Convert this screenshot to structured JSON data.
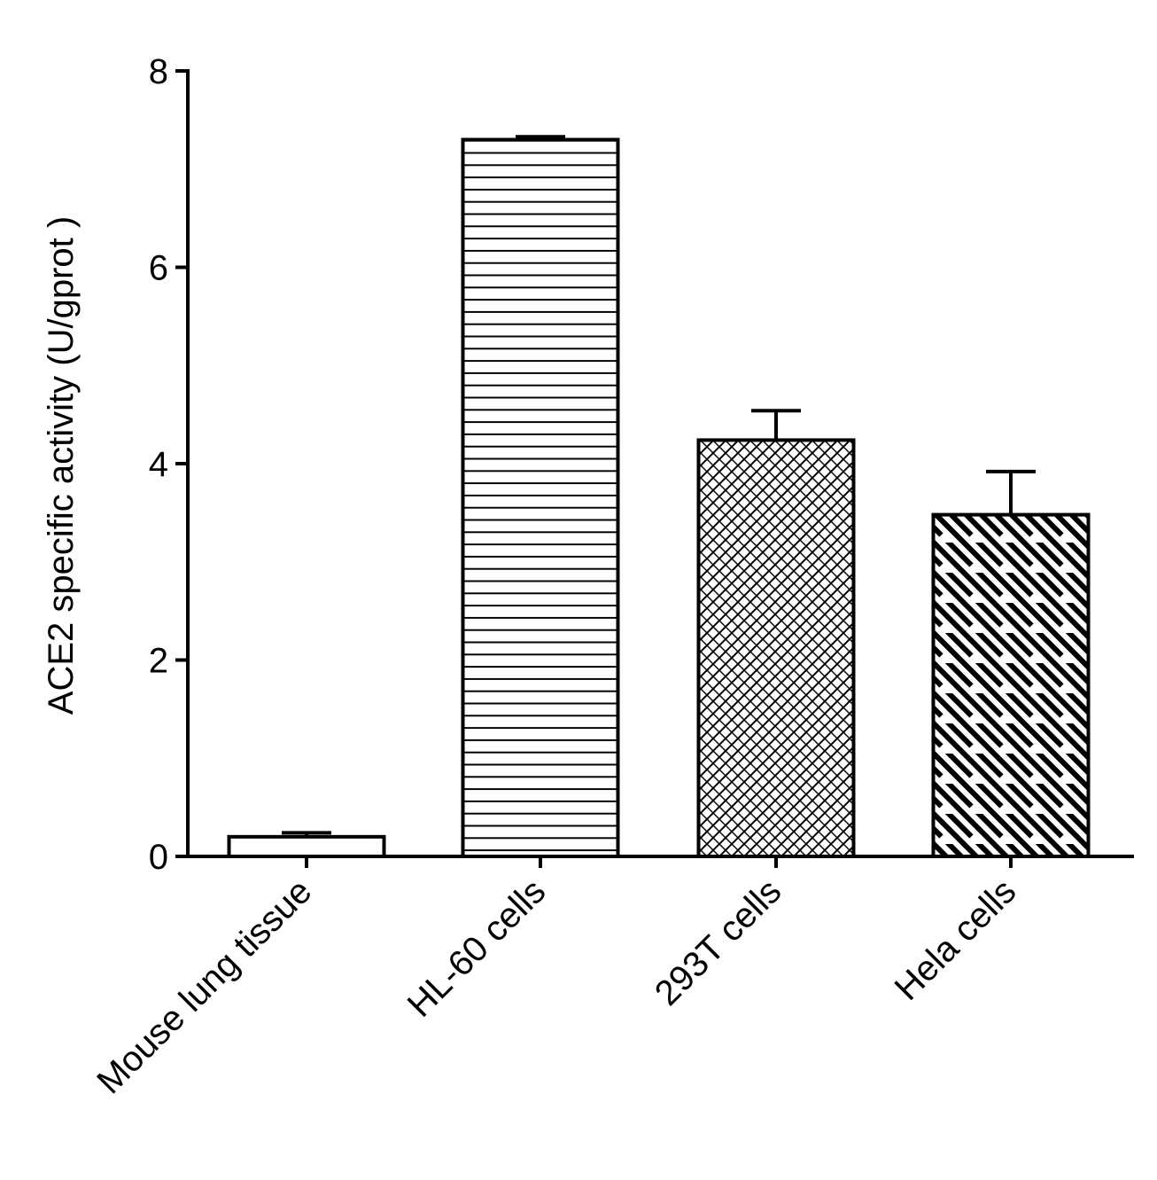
{
  "chart_data": {
    "type": "bar",
    "title": "",
    "xlabel": "",
    "ylabel": "ACE2 specific activity (U/gprot )",
    "ylim": [
      0,
      8
    ],
    "yticks": [
      0,
      2,
      4,
      6,
      8
    ],
    "grid": false,
    "categories": [
      "Mouse lung tissue",
      "HL-60 cells",
      "293T cells",
      "Hela cells"
    ],
    "values": [
      0.2,
      7.3,
      4.24,
      3.48
    ],
    "errors": [
      0.04,
      0.03,
      0.3,
      0.44
    ],
    "patterns": [
      "dotted",
      "horizontal-lines",
      "crosshatch",
      "diagonal-stripes"
    ],
    "colors": {
      "bar_stroke": "#000000",
      "bar_fill": "#ffffff",
      "axis": "#000000"
    }
  }
}
